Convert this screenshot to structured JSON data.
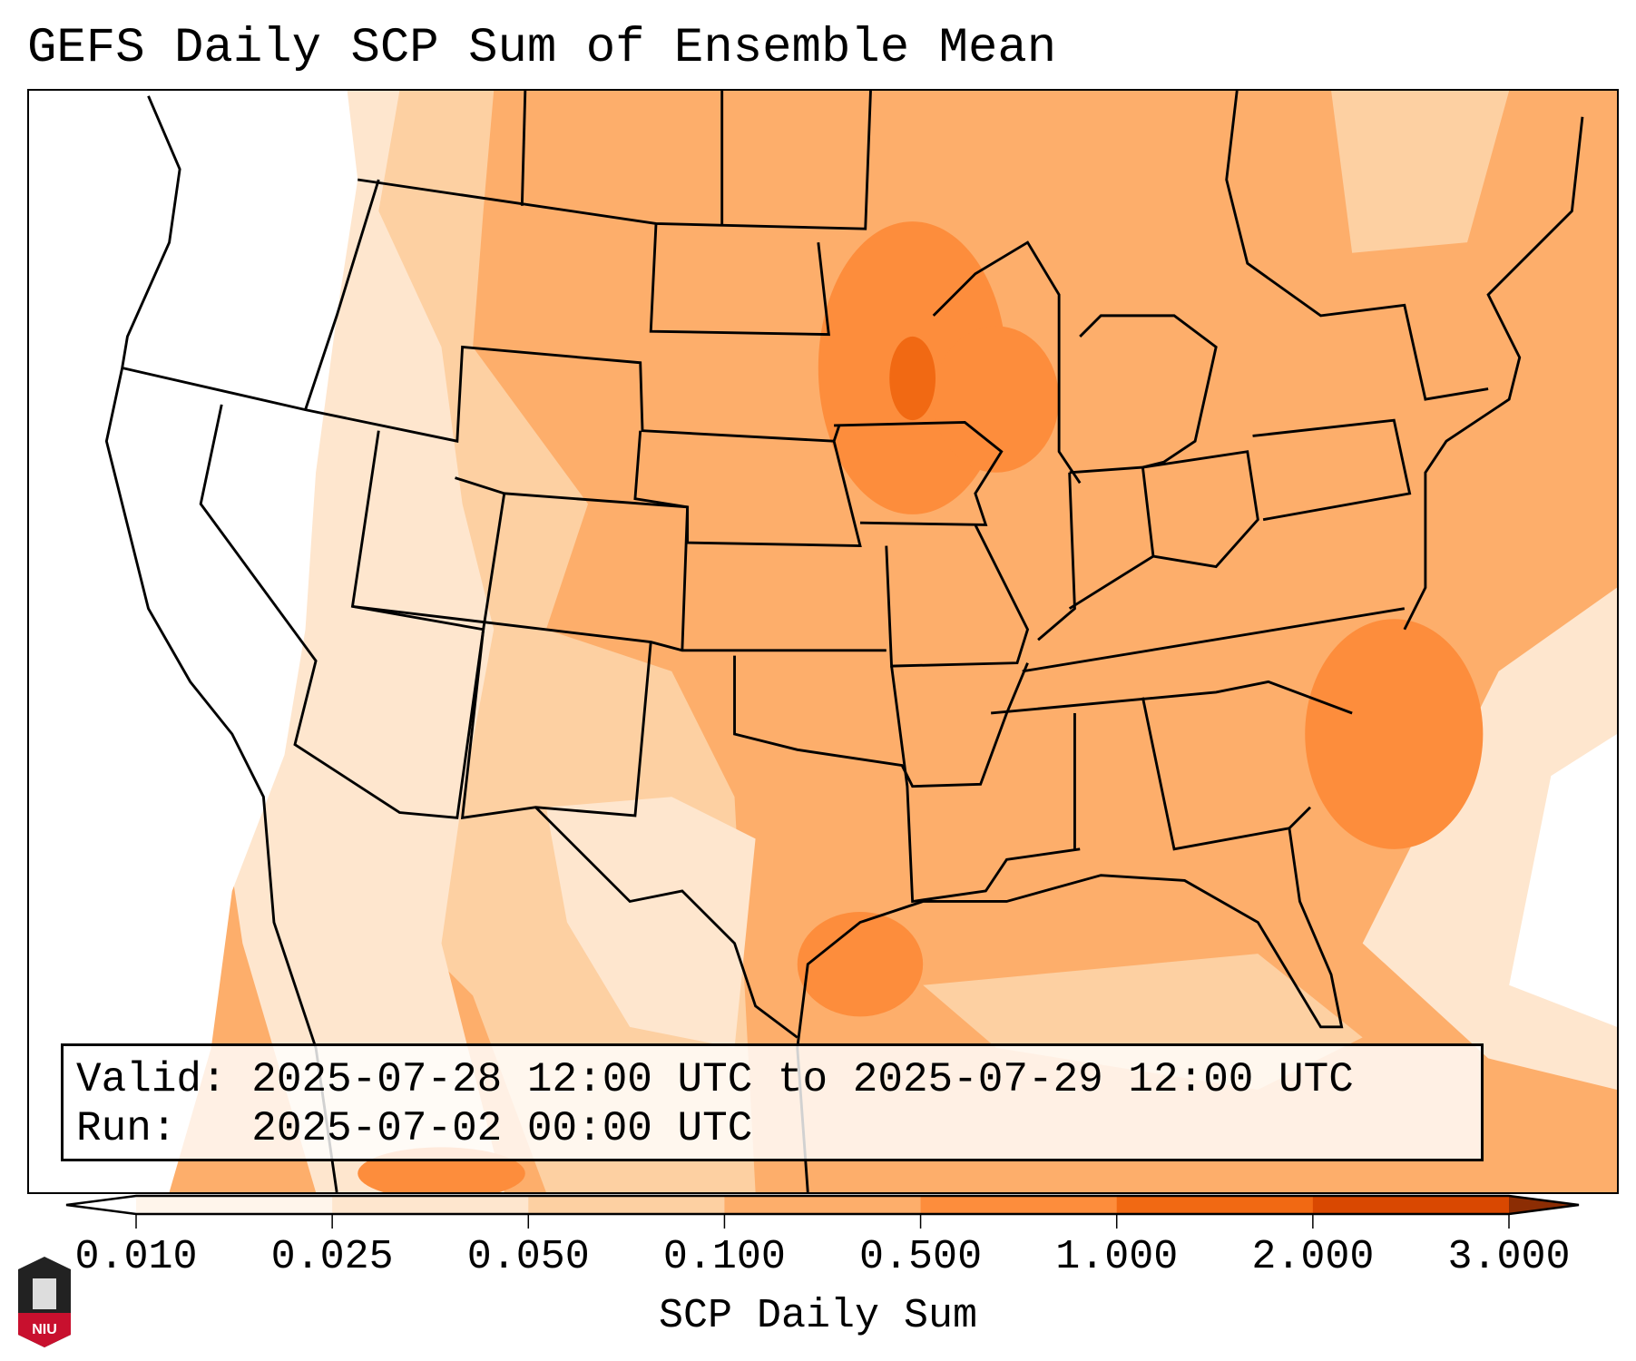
{
  "chart_data": {
    "type": "heatmap",
    "title": "GEFS Daily SCP Sum of Ensemble Mean",
    "map_region": "Contiguous United States",
    "valid_line": "Valid: 2025-07-28 12:00 UTC to 2025-07-29 12:00 UTC",
    "run_line": "Run:   2025-07-02 00:00 UTC",
    "colorbar": {
      "label": "SCP Daily Sum",
      "ticks": [
        "0.010",
        "0.025",
        "0.050",
        "0.100",
        "0.500",
        "1.000",
        "2.000",
        "3.000"
      ],
      "levels": [
        0.01,
        0.025,
        0.05,
        0.1,
        0.5,
        1.0,
        2.0,
        3.0
      ],
      "colors": [
        "#fff5eb",
        "#fee6ce",
        "#fdd0a2",
        "#fdae6b",
        "#fd8d3c",
        "#f16913",
        "#d94801"
      ],
      "over_color": "#8c2d04",
      "under_color": "#ffffff",
      "extend": "both"
    }
  },
  "logo_text": "NIU"
}
